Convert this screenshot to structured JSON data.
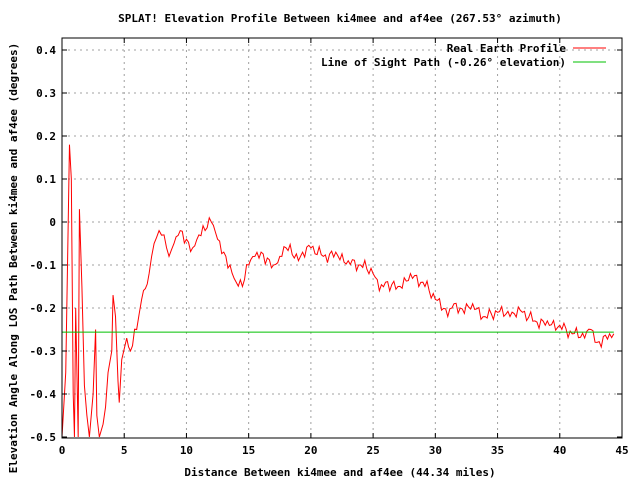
{
  "chart_data": {
    "type": "line",
    "title": "SPLAT! Elevation Profile Between ki4mee and af4ee (267.53° azimuth)",
    "xlabel": "Distance Between ki4mee and af4ee (44.34 miles)",
    "ylabel": "Elevation Angle Along LOS Path Between ki4mee and af4ee (degrees)",
    "xlim": [
      0,
      45
    ],
    "ylim": [
      -0.5,
      0.43
    ],
    "xticks": [
      "0",
      "5",
      "10",
      "15",
      "20",
      "25",
      "30",
      "35",
      "40",
      "45"
    ],
    "yticks": [
      "0.4",
      "0.3",
      "0.2",
      "0.1",
      "0",
      "-0.1",
      "-0.2",
      "-0.3",
      "-0.4",
      "-0.5"
    ],
    "grid": true,
    "legend_position": "top-right",
    "series": [
      {
        "name": "Real Earth Profile",
        "color": "#ff0000",
        "x": [
          0.0,
          0.3,
          0.5,
          0.6,
          0.75,
          0.9,
          1.0,
          1.1,
          1.3,
          1.4,
          1.6,
          1.8,
          2.0,
          2.2,
          2.5,
          2.7,
          2.8,
          3.0,
          3.3,
          3.5,
          3.7,
          4.0,
          4.1,
          4.3,
          4.5,
          4.6,
          4.8,
          5.2,
          5.5,
          6.0,
          6.4,
          7.0,
          7.4,
          7.8,
          8.2,
          8.6,
          9.0,
          9.5,
          10.0,
          10.5,
          11.0,
          11.5,
          12.0,
          12.5,
          13.0,
          13.5,
          14.0,
          14.5,
          15.0,
          15.5,
          16.0,
          17.0,
          17.5,
          18.0,
          19.0,
          20.0,
          21.0,
          22.0,
          23.0,
          24.0,
          25.0,
          25.5,
          26.0,
          27.0,
          28.0,
          29.0,
          30.0,
          31.0,
          31.5,
          32.0,
          33.0,
          34.0,
          35.0,
          36.0,
          37.0,
          38.0,
          39.0,
          40.0,
          41.0,
          42.0,
          42.5,
          43.0,
          44.0,
          44.34
        ],
        "y": [
          -0.5,
          -0.35,
          0.0,
          0.18,
          0.1,
          -0.4,
          -0.5,
          -0.2,
          -0.5,
          0.03,
          -0.15,
          -0.38,
          -0.45,
          -0.5,
          -0.4,
          -0.25,
          -0.45,
          -0.5,
          -0.47,
          -0.43,
          -0.35,
          -0.3,
          -0.17,
          -0.22,
          -0.37,
          -0.42,
          -0.32,
          -0.27,
          -0.3,
          -0.25,
          -0.18,
          -0.12,
          -0.05,
          -0.02,
          -0.03,
          -0.08,
          -0.05,
          -0.02,
          -0.04,
          -0.06,
          -0.03,
          -0.02,
          0.0,
          -0.04,
          -0.07,
          -0.1,
          -0.14,
          -0.15,
          -0.1,
          -0.08,
          -0.07,
          -0.1,
          -0.08,
          -0.06,
          -0.09,
          -0.06,
          -0.08,
          -0.07,
          -0.09,
          -0.1,
          -0.12,
          -0.16,
          -0.14,
          -0.15,
          -0.12,
          -0.14,
          -0.18,
          -0.22,
          -0.19,
          -0.2,
          -0.19,
          -0.22,
          -0.21,
          -0.22,
          -0.21,
          -0.23,
          -0.23,
          -0.24,
          -0.26,
          -0.27,
          -0.25,
          -0.28,
          -0.26,
          -0.26
        ]
      },
      {
        "name": "Line of Sight Path (-0.26° elevation)",
        "color": "#00c000",
        "x": [
          0,
          44.34
        ],
        "y": [
          -0.256,
          -0.256
        ]
      }
    ]
  }
}
